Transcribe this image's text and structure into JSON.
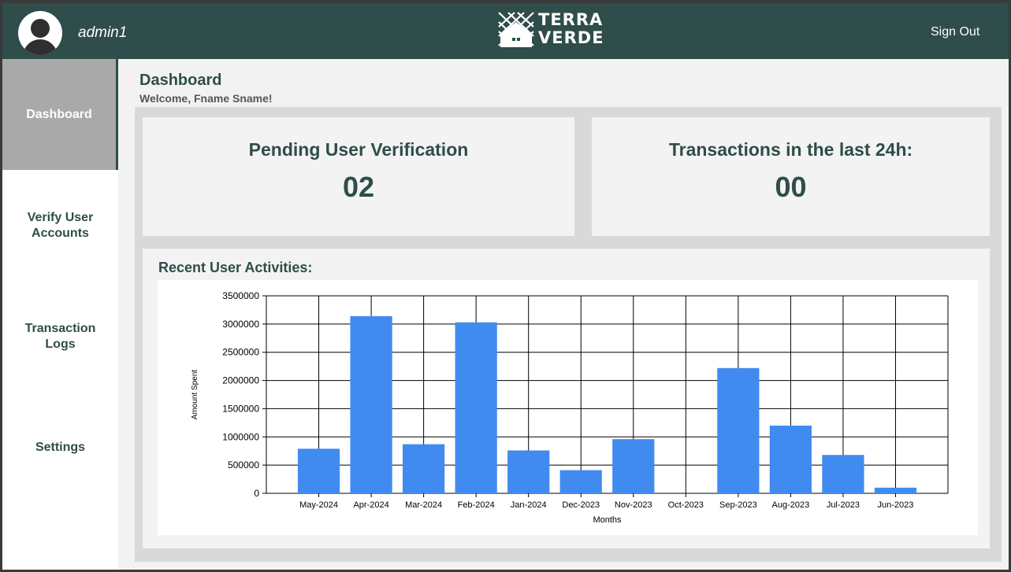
{
  "header": {
    "username": "admin1",
    "logo_line1": "TERRA",
    "logo_line2": "VERDE",
    "signout_label": "Sign Out",
    "bg_color": "#2f4d4a"
  },
  "sidebar": {
    "items": [
      {
        "label": "Dashboard",
        "active": true
      },
      {
        "label": "Verify User\nAccounts",
        "active": false
      },
      {
        "label": "Transaction\nLogs",
        "active": false
      },
      {
        "label": "Settings",
        "active": false
      }
    ]
  },
  "main": {
    "title": "Dashboard",
    "welcome": "Welcome, Fname Sname!",
    "cards": [
      {
        "label": "Pending User Verification",
        "value": "02"
      },
      {
        "label": "Transactions in the last 24h:",
        "value": "00"
      }
    ],
    "activities_heading": "Recent User Activities:"
  },
  "chart_data": {
    "type": "bar",
    "categories": [
      "May-2024",
      "Apr-2024",
      "Mar-2024",
      "Feb-2024",
      "Jan-2024",
      "Dec-2023",
      "Nov-2023",
      "Oct-2023",
      "Sep-2023",
      "Aug-2023",
      "Jul-2023",
      "Jun-2023"
    ],
    "values": [
      790000,
      3140000,
      870000,
      3030000,
      760000,
      410000,
      960000,
      0,
      2220000,
      1200000,
      680000,
      100000
    ],
    "xlabel": "Months",
    "ylabel": "Amount Spent",
    "ylim": [
      0,
      3500000
    ],
    "yticks": [
      "0",
      "500000",
      "1000000",
      "1500000",
      "2000000",
      "2500000",
      "3000000",
      "3500000"
    ],
    "grid": true,
    "bar_color": "#418bf0"
  }
}
